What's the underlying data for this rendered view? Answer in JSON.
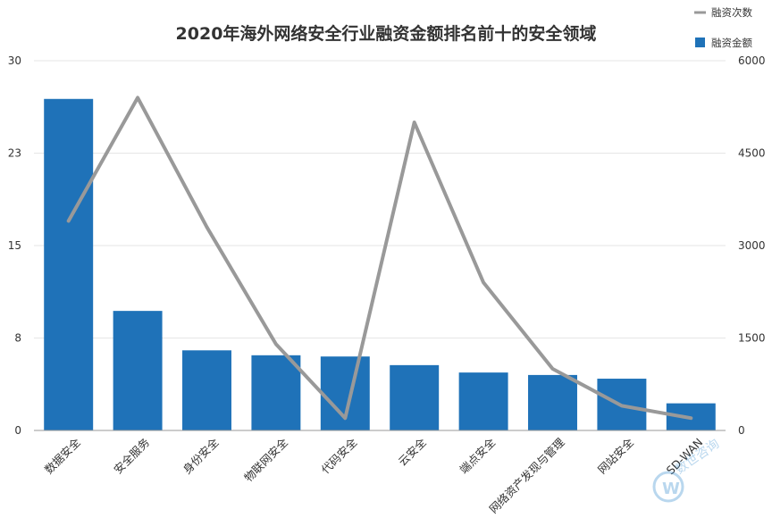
{
  "chart_data": {
    "type": "bar",
    "title": "2020年海外网络安全行业融资金额排名前十的安全领域",
    "categories": [
      "数据安全",
      "安全服务",
      "身份安全",
      "物联网安全",
      "代码安全",
      "云安全",
      "端点安全",
      "网络资产发现与管理",
      "网站安全",
      "SD-WAN"
    ],
    "series": [
      {
        "name": "融资金额",
        "kind": "bar",
        "axis": "left",
        "color": "#1f72b8",
        "values": [
          26.9,
          9.7,
          6.5,
          6.1,
          6.0,
          5.3,
          4.7,
          4.5,
          4.2,
          2.2
        ]
      },
      {
        "name": "融资次数",
        "kind": "line",
        "axis": "right",
        "color": "#999999",
        "values": [
          3400,
          5400,
          3300,
          1400,
          200,
          5000,
          2400,
          1000,
          400,
          200
        ]
      }
    ],
    "y_left": {
      "ticks": [
        "0",
        "8",
        "15",
        "23",
        "30"
      ],
      "ylim": [
        0,
        30
      ]
    },
    "y_right": {
      "ticks": [
        "0",
        "1500",
        "3000",
        "4500",
        "6000"
      ],
      "ylim": [
        0,
        6000
      ]
    },
    "grid": true,
    "legend_position": "top-right",
    "watermark": "DW 数世咨询 Digital World Consulting"
  }
}
